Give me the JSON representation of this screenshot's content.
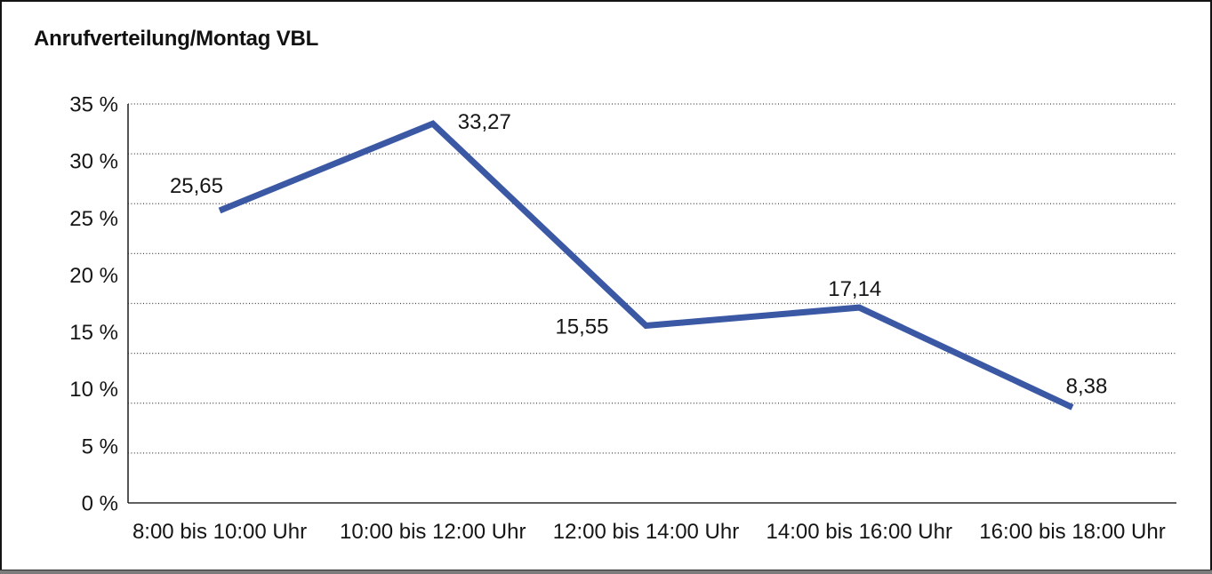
{
  "window": {
    "background": "#ffffff",
    "frame_border_color": "#141414",
    "bottom_edge_color": "#7c7c7c"
  },
  "chart_data": {
    "type": "line",
    "title": "Anrufverteilung/Montag VBL",
    "categories": [
      "8:00 bis 10:00 Uhr",
      "10:00 bis 12:00 Uhr",
      "12:00 bis 14:00 Uhr",
      "14:00 bis 16:00 Uhr",
      "16:00 bis 18:00 Uhr"
    ],
    "values": [
      25.65,
      33.27,
      15.55,
      17.14,
      8.38
    ],
    "point_labels": [
      "25,65",
      "33,27",
      "15,55",
      "17,14",
      "8,38"
    ],
    "xlabel": "",
    "ylabel": "",
    "ylim": [
      0,
      35
    ],
    "y_ticks": [
      "0 %",
      "5 %",
      "10 %",
      "15 %",
      "20 %",
      "25 %",
      "30 %",
      "35 %"
    ],
    "gridlines": {
      "count": 9,
      "style": "dotted",
      "orientation": "horizontal"
    },
    "legend": "none",
    "line_color": "#3A58A4",
    "text_color": "#151515",
    "axis_color": "#2b2b2b",
    "gridline_color": "#444444"
  }
}
